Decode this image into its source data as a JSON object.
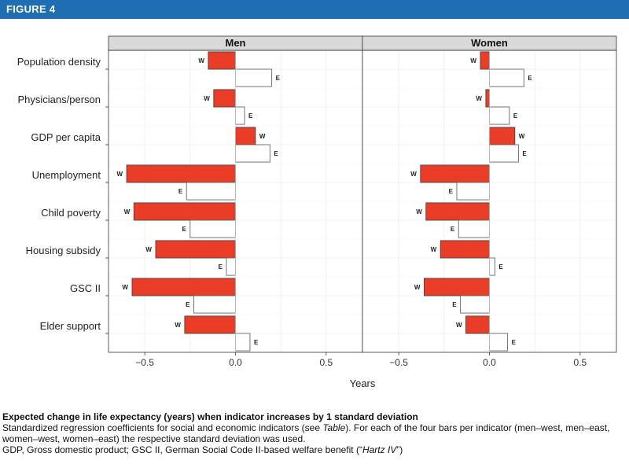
{
  "figure_label": "FIGURE 4",
  "chart_data": {
    "type": "bar",
    "orientation": "horizontal",
    "panels": [
      "Men",
      "Women"
    ],
    "indicators": [
      "Population density",
      "Physicians/person",
      "GDP per capita",
      "Unemployment",
      "Child poverty",
      "Housing subsidy",
      "GSC II",
      "Elder support"
    ],
    "series": [
      {
        "name": "Men",
        "region": "W",
        "values": [
          -0.15,
          -0.12,
          0.11,
          -0.6,
          -0.56,
          -0.44,
          -0.57,
          -0.28
        ]
      },
      {
        "name": "Men",
        "region": "E",
        "values": [
          0.2,
          0.05,
          0.19,
          -0.27,
          -0.25,
          -0.05,
          -0.23,
          0.08
        ]
      },
      {
        "name": "Women",
        "region": "W",
        "values": [
          -0.05,
          -0.02,
          0.14,
          -0.38,
          -0.35,
          -0.27,
          -0.36,
          -0.13
        ]
      },
      {
        "name": "Women",
        "region": "E",
        "values": [
          0.19,
          0.11,
          0.16,
          -0.18,
          -0.17,
          0.03,
          -0.16,
          0.1
        ]
      }
    ],
    "series_labels": {
      "W": "W",
      "E": "E"
    },
    "xlabel": "Years",
    "xlim": [
      -0.7,
      0.7
    ],
    "xticks": [
      -0.5,
      0.0,
      0.5
    ],
    "xtick_labels": [
      "−0.5",
      "0.0",
      "0.5"
    ],
    "colors": {
      "west": "#ea3d27",
      "east": "#ffffff",
      "panel_strip": "#d9d9d9",
      "grid": "#ebebeb",
      "header": "#1f6db3"
    }
  },
  "caption": {
    "title": "Expected change in life expectancy (years) when indicator increases by 1 standard deviation",
    "body_pre": "Standardized regression coefficients for social and economic indicators (see ",
    "body_table": "Table",
    "body_post": "). For each of the four bars per indicator (men–west, men–east, women–west, women–east) the respective standard deviation was used.",
    "footnote_pre": "GDP, Gross domestic product; GSC II, German Social Code II-based welfare benefit (“",
    "footnote_italic": "Hartz IV",
    "footnote_post": "”)"
  }
}
